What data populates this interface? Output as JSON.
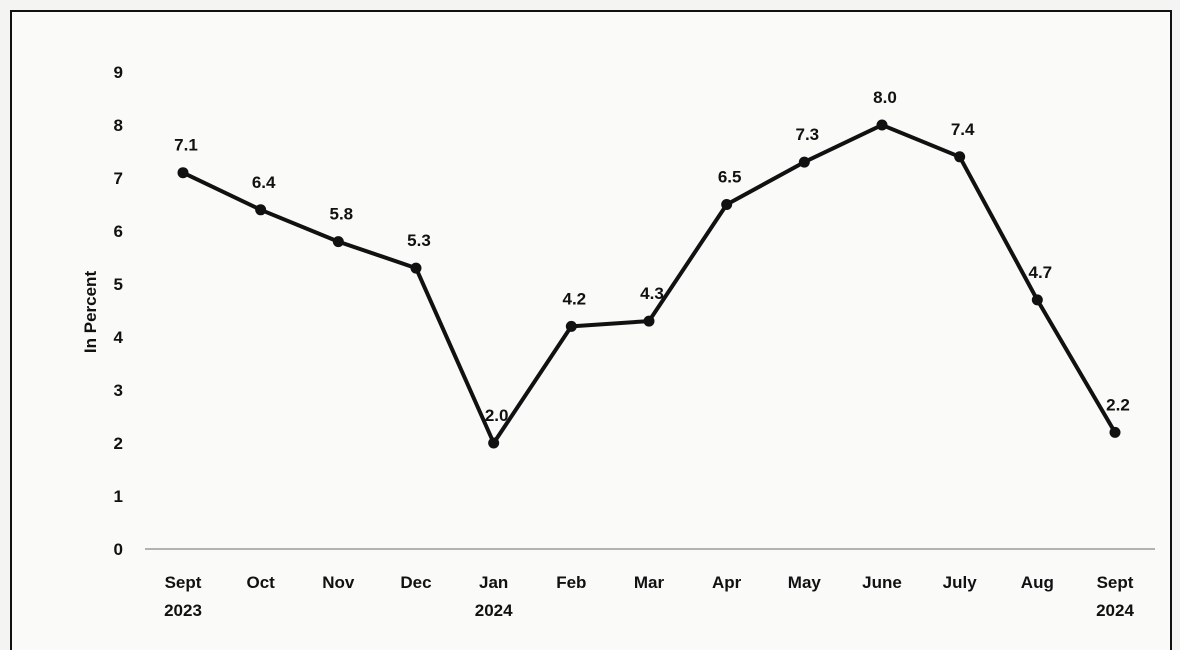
{
  "chart_data": {
    "type": "line",
    "ylabel": "In Percent",
    "ylim": [
      0,
      9
    ],
    "yticks": [
      "0",
      "1",
      "2",
      "3",
      "4",
      "5",
      "6",
      "7",
      "8",
      "9"
    ],
    "categories": [
      [
        "Sept",
        "2023"
      ],
      [
        "Oct",
        ""
      ],
      [
        "Nov",
        ""
      ],
      [
        "Dec",
        ""
      ],
      [
        "Jan",
        "2024"
      ],
      [
        "Feb",
        ""
      ],
      [
        "Mar",
        ""
      ],
      [
        "Apr",
        ""
      ],
      [
        "May",
        ""
      ],
      [
        "June",
        ""
      ],
      [
        "July",
        ""
      ],
      [
        "Aug",
        ""
      ],
      [
        "Sept",
        "2024"
      ]
    ],
    "values": [
      7.1,
      6.4,
      5.8,
      5.3,
      2.0,
      4.2,
      4.3,
      6.5,
      7.3,
      8.0,
      7.4,
      4.7,
      2.2
    ],
    "data_labels": [
      "7.1",
      "6.4",
      "5.8",
      "5.3",
      "2.0",
      "4.2",
      "4.3",
      "6.5",
      "7.3",
      "8.0",
      "7.4",
      "4.7",
      "2.2"
    ],
    "line_color": "#111111",
    "axis_color": "#9a9a9a",
    "grid": false,
    "legend": "none"
  }
}
